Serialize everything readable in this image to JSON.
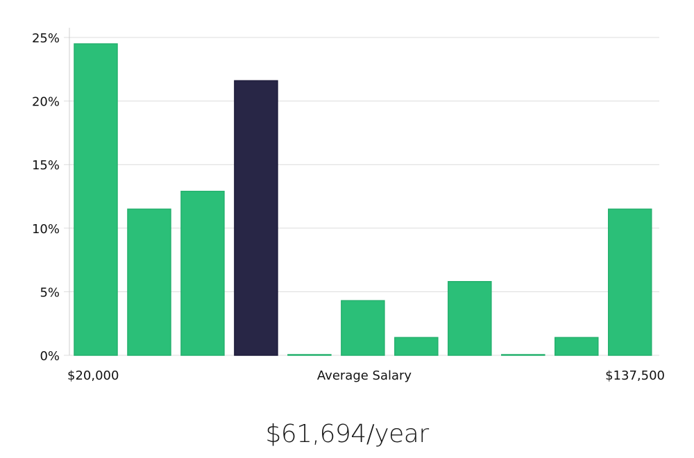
{
  "chart_data": {
    "type": "bar",
    "categories": [
      "1",
      "2",
      "3",
      "4",
      "5",
      "6",
      "7",
      "8",
      "9",
      "10",
      "11"
    ],
    "values": [
      24.5,
      11.5,
      12.9,
      21.6,
      0.05,
      4.3,
      1.4,
      5.8,
      0.05,
      1.4,
      11.5
    ],
    "highlight_index": 3,
    "ylim": [
      0,
      25
    ],
    "y_ticks": [
      0,
      5,
      10,
      15,
      20,
      25
    ],
    "y_tick_labels": [
      "0%",
      "5%",
      "10%",
      "15%",
      "20%",
      "25%"
    ],
    "x_label_left": "$20,000",
    "x_label_center": "Average Salary",
    "x_label_right": "$137,500",
    "grid": true,
    "colors": {
      "bar": "#2bbf78",
      "bar_stroke": "#24b06d",
      "highlight": "#282646",
      "highlight_stroke": "#1c1a3a",
      "grid": "#dcdcdc"
    }
  },
  "salary_display": "$61,694/year"
}
